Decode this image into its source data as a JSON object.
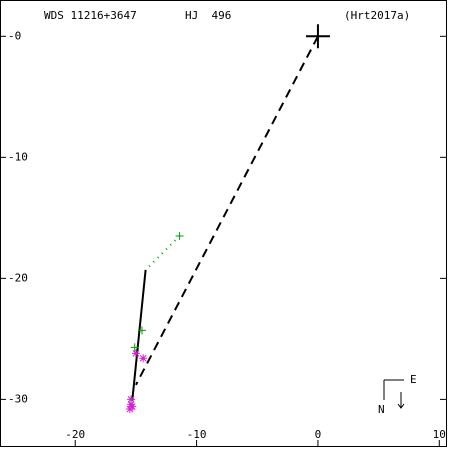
{
  "chart_data": {
    "type": "scatter",
    "header": {
      "left": "WDS 11216+3647",
      "center": "HJ  496",
      "right": "(Hrt2017a)"
    },
    "compass": {
      "north": "N",
      "east": "E"
    },
    "xlim": [
      -26.2,
      10.8
    ],
    "ylim": [
      -34.1,
      3.0
    ],
    "xticks": [
      -20,
      -10,
      0,
      10
    ],
    "yticks": [
      {
        "value": 0,
        "label": "-0"
      },
      -10,
      -20,
      -30
    ],
    "series": [
      {
        "color": "#000000",
        "marker": "big-plus",
        "x": [
          0
        ],
        "values": [
          0
        ]
      },
      {
        "color": "#000000",
        "line": "dashed",
        "x": [
          0,
          -15.0
        ],
        "values": [
          0,
          -28.8
        ]
      },
      {
        "color": "#000000",
        "line": "solid",
        "x": [
          -14.2,
          -15.3
        ],
        "values": [
          -19.3,
          -30.1
        ]
      },
      {
        "color": "#00a000",
        "line": "dotted",
        "x": [
          -11.4,
          -14.2
        ],
        "values": [
          -16.5,
          -19.3
        ]
      },
      {
        "color": "#00a000",
        "marker": "plus",
        "x": [
          -11.4,
          -14.5,
          -15.1
        ],
        "values": [
          -16.5,
          -24.3,
          -25.7
        ]
      },
      {
        "color": "#d020d0",
        "marker": "star",
        "x": [
          -14.4,
          -15.0,
          -15.4,
          -15.4,
          -15.5,
          -15.3
        ],
        "values": [
          -26.6,
          -26.2,
          -30.0,
          -30.4,
          -30.8,
          -30.6
        ]
      }
    ]
  }
}
